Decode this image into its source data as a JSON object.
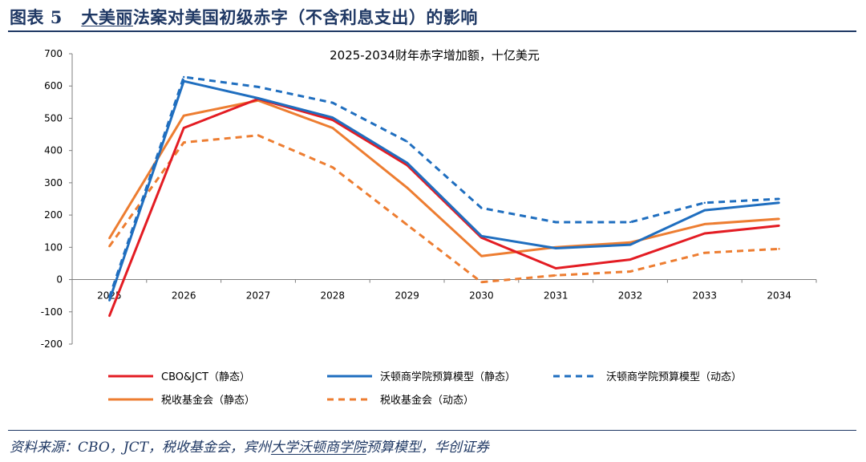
{
  "header": {
    "figure_label": "图表 5",
    "title_highlight": "大美丽",
    "title_rest": "法案对美国初级赤字（不含利息支出）的影响"
  },
  "chart_data": {
    "type": "line",
    "title": "2025-2034财年赤字增加额，十亿美元",
    "categories": [
      "2025",
      "2026",
      "2027",
      "2028",
      "2029",
      "2030",
      "2031",
      "2032",
      "2033",
      "2034"
    ],
    "ylim": [
      -200,
      700
    ],
    "yticks": [
      "700",
      "600",
      "500",
      "400",
      "300",
      "200",
      "100",
      "0",
      "-100",
      "-200"
    ],
    "grid": false,
    "legend_position": "bottom",
    "series": [
      {
        "name": "CBO&JCT（静态）",
        "color": "#e31c23",
        "dash": "solid",
        "values": [
          -113,
          470,
          560,
          495,
          355,
          130,
          35,
          62,
          143,
          167
        ]
      },
      {
        "name": "沃顿商学院预算模型（静态）",
        "color": "#1f6ebf",
        "dash": "solid",
        "values": [
          -65,
          615,
          562,
          502,
          362,
          135,
          97,
          108,
          215,
          238
        ]
      },
      {
        "name": "沃顿商学院预算模型（动态）",
        "color": "#1f6ebf",
        "dash": "dashed",
        "values": [
          -55,
          628,
          597,
          548,
          428,
          222,
          178,
          178,
          238,
          250
        ]
      },
      {
        "name": "税收基金会（静态）",
        "color": "#ed7d31",
        "dash": "solid",
        "values": [
          128,
          508,
          555,
          470,
          285,
          73,
          100,
          115,
          172,
          188
        ]
      },
      {
        "name": "税收基金会（动态）",
        "color": "#ed7d31",
        "dash": "dashed",
        "values": [
          103,
          425,
          447,
          348,
          170,
          -8,
          13,
          25,
          83,
          95
        ]
      }
    ]
  },
  "footer": {
    "source_prefix": "资料来源：CBO，JCT，税收基金会，宾州",
    "source_highlight": "大学沃顿商学院",
    "source_suffix": "预算模型，华创证券"
  }
}
